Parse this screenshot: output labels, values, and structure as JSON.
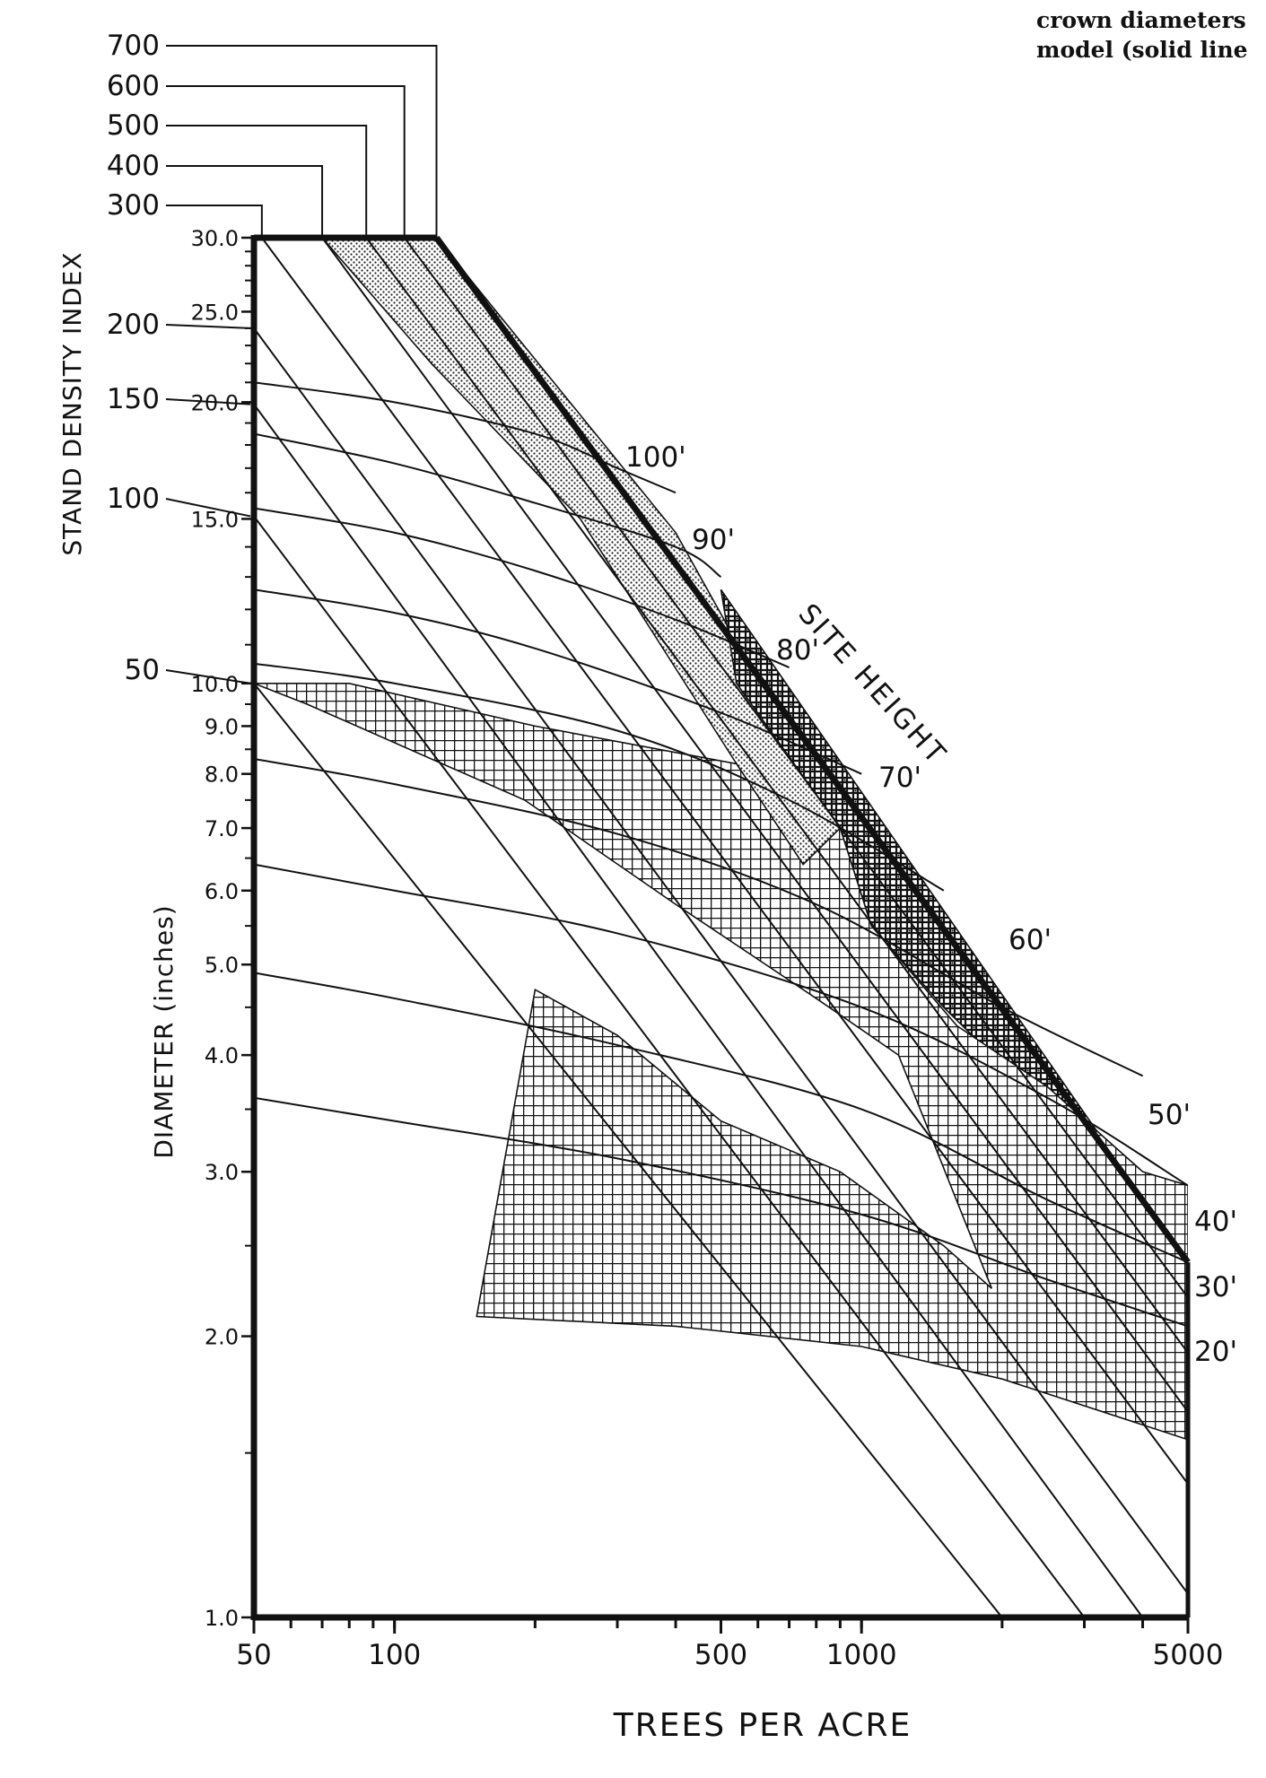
{
  "caption_lines": [
    "crown diameters",
    "model (solid line"
  ],
  "chart_data": {
    "type": "line",
    "x_axis": {
      "label": "TREES PER ACRE",
      "scale": "log",
      "range": [
        50,
        5000
      ],
      "tick_labels": [
        "50",
        "100",
        "500",
        "1000",
        "5000"
      ],
      "tick_values": [
        50,
        100,
        500,
        1000,
        5000
      ]
    },
    "y_axis_diameter": {
      "label": "DIAMETER (inches)",
      "scale": "log",
      "range": [
        1.0,
        30.0
      ],
      "tick_labels": [
        "1.0",
        "2.0",
        "3.0",
        "4.0",
        "5.0",
        "6.0",
        "7.0",
        "8.0",
        "9.0",
        "10.0",
        "15.0",
        "20.0",
        "25.0",
        "30.0"
      ],
      "tick_values": [
        1,
        2,
        3,
        4,
        5,
        6,
        7,
        8,
        9,
        10,
        15,
        20,
        25,
        30
      ]
    },
    "y_axis_sdi": {
      "label": "STAND DENSITY INDEX",
      "tick_labels": [
        "50",
        "100",
        "150",
        "200",
        "300",
        "400",
        "500",
        "600",
        "700"
      ],
      "tick_values": [
        50,
        100,
        150,
        200,
        300,
        400,
        500,
        600,
        700
      ]
    },
    "sdi_lines": [
      {
        "sdi": 50,
        "points": [
          [
            50,
            10.0
          ],
          [
            2000,
            1.0
          ]
        ]
      },
      {
        "sdi": 100,
        "points": [
          [
            50,
            15.1
          ],
          [
            3000,
            1.0
          ]
        ]
      },
      {
        "sdi": 150,
        "points": [
          [
            50,
            19.9
          ],
          [
            4000,
            1.0
          ]
        ]
      },
      {
        "sdi": 200,
        "points": [
          [
            50,
            24.0
          ],
          [
            5000,
            1.06
          ]
        ]
      },
      {
        "sdi": 300,
        "points": [
          [
            52,
            30.0
          ],
          [
            5000,
            1.39
          ]
        ]
      },
      {
        "sdi": 400,
        "points": [
          [
            70,
            30.0
          ],
          [
            5000,
            1.66
          ]
        ]
      },
      {
        "sdi": 500,
        "points": [
          [
            87,
            30.0
          ],
          [
            5000,
            1.92
          ]
        ]
      },
      {
        "sdi": 600,
        "points": [
          [
            105,
            30.0
          ],
          [
            5000,
            2.2
          ]
        ]
      },
      {
        "sdi": 700,
        "points": [
          [
            123,
            30.0
          ],
          [
            5000,
            2.4
          ]
        ]
      }
    ],
    "site_height_label": "SITE HEIGHT",
    "site_height_curves": [
      {
        "label": "100'",
        "points": [
          [
            50,
            21.0
          ],
          [
            100,
            20.0
          ],
          [
            200,
            18.5
          ],
          [
            300,
            17.0
          ],
          [
            400,
            16.0
          ]
        ]
      },
      {
        "label": "90'",
        "points": [
          [
            50,
            18.5
          ],
          [
            100,
            17.2
          ],
          [
            200,
            15.6
          ],
          [
            400,
            14.0
          ],
          [
            500,
            13.0
          ]
        ]
      },
      {
        "label": "80'",
        "points": [
          [
            50,
            15.4
          ],
          [
            100,
            14.5
          ],
          [
            200,
            13.2
          ],
          [
            400,
            11.7
          ],
          [
            700,
            10.4
          ]
        ]
      },
      {
        "label": "70'",
        "points": [
          [
            50,
            12.6
          ],
          [
            100,
            11.9
          ],
          [
            200,
            10.9
          ],
          [
            500,
            9.3
          ],
          [
            1000,
            8.0
          ]
        ]
      },
      {
        "label": "60'",
        "points": [
          [
            50,
            10.5
          ],
          [
            100,
            10.0
          ],
          [
            300,
            8.9
          ],
          [
            700,
            7.5
          ],
          [
            1500,
            6.0
          ]
        ]
      },
      {
        "label": "50'",
        "points": [
          [
            50,
            8.3
          ],
          [
            100,
            7.8
          ],
          [
            300,
            6.9
          ],
          [
            800,
            5.8
          ],
          [
            2000,
            4.5
          ],
          [
            4000,
            3.8
          ]
        ]
      },
      {
        "label": "40'",
        "points": [
          [
            50,
            6.4
          ],
          [
            100,
            6.0
          ],
          [
            300,
            5.4
          ],
          [
            1000,
            4.5
          ],
          [
            2500,
            3.6
          ],
          [
            5000,
            2.9
          ]
        ]
      },
      {
        "label": "30'",
        "points": [
          [
            50,
            4.9
          ],
          [
            100,
            4.6
          ],
          [
            300,
            4.1
          ],
          [
            1000,
            3.5
          ],
          [
            2500,
            2.8
          ],
          [
            5000,
            2.4
          ]
        ]
      },
      {
        "label": "20'",
        "points": [
          [
            50,
            3.6
          ],
          [
            100,
            3.4
          ],
          [
            300,
            3.1
          ],
          [
            1000,
            2.7
          ],
          [
            2500,
            2.3
          ],
          [
            5000,
            2.05
          ]
        ]
      }
    ],
    "regions": [
      {
        "fill": "stipple",
        "points": [
          [
            70,
            30.0
          ],
          [
            123,
            30.0
          ],
          [
            400,
            14.5
          ],
          [
            900,
            7.0
          ],
          [
            780,
            6.0
          ],
          [
            540,
            8.2
          ],
          [
            250,
            15.0
          ],
          [
            120,
            22.0
          ]
        ]
      },
      {
        "fill": "dense-crosshatch",
        "points": [
          [
            500,
            12.6
          ],
          [
            5000,
            2.4
          ],
          [
            5000,
            2.4
          ],
          [
            4000,
            2.6
          ],
          [
            2500,
            3.5
          ],
          [
            1500,
            4.5
          ],
          [
            1050,
            5.5
          ],
          [
            900,
            7.0
          ],
          [
            540,
            10.0
          ]
        ]
      },
      {
        "fill": "crosshatch",
        "points": [
          [
            50,
            10.0
          ],
          [
            65,
            9.5
          ],
          [
            190,
            7.5
          ],
          [
            400,
            5.8
          ],
          [
            800,
            4.6
          ],
          [
            1200,
            4.0
          ],
          [
            1400,
            3.3
          ],
          [
            1900,
            2.25
          ],
          [
            1500,
            2.5
          ],
          [
            900,
            3.0
          ],
          [
            500,
            3.4
          ],
          [
            300,
            4.2
          ],
          [
            200,
            4.7
          ],
          [
            150,
            2.1
          ],
          [
            400,
            2.05
          ],
          [
            1000,
            1.95
          ],
          [
            2000,
            1.8
          ],
          [
            5000,
            1.55
          ],
          [
            5000,
            2.9
          ],
          [
            4000,
            3.0
          ],
          [
            2500,
            3.7
          ],
          [
            1600,
            4.3
          ],
          [
            1050,
            5.5
          ],
          [
            900,
            7.0
          ],
          [
            750,
            6.4
          ],
          [
            540,
            8.2
          ],
          [
            200,
            9.0
          ],
          [
            80,
            10.0
          ]
        ]
      }
    ],
    "grid": false,
    "legend": "none"
  }
}
